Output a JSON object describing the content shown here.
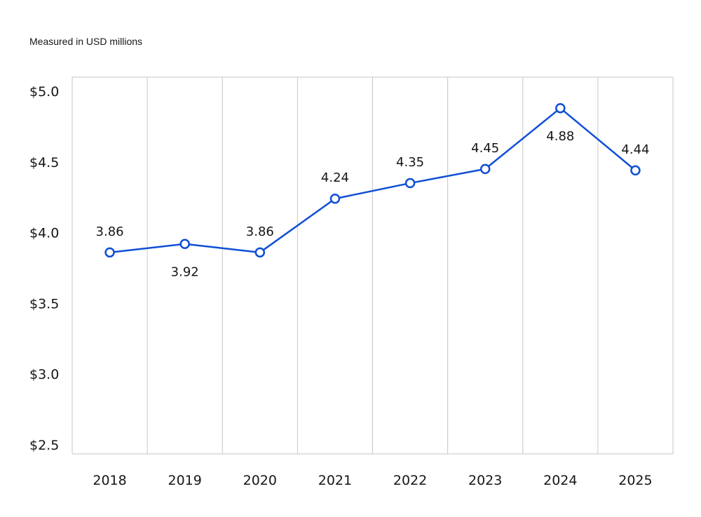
{
  "chart_data": {
    "type": "line",
    "subtitle": "Measured in USD millions",
    "categories": [
      "2018",
      "2019",
      "2020",
      "2021",
      "2022",
      "2023",
      "2024",
      "2025"
    ],
    "series": [
      {
        "values": [
          3.86,
          3.92,
          3.86,
          4.24,
          4.35,
          4.45,
          4.88,
          4.44
        ],
        "labels": [
          "3.86",
          "3.92",
          "3.86",
          "4.24",
          "4.35",
          "4.45",
          "4.88",
          "4.44"
        ],
        "color": "#0f4fd6"
      }
    ],
    "ylim": [
      2.5,
      5.0
    ],
    "yticks": [
      2.5,
      3.0,
      3.5,
      4.0,
      4.5,
      5.0
    ],
    "ytick_labels": [
      "$2.5",
      "$3.0",
      "$3.5",
      "$4.0",
      "$4.5",
      "$5.0"
    ],
    "grid": "vertical",
    "legend": "none"
  }
}
